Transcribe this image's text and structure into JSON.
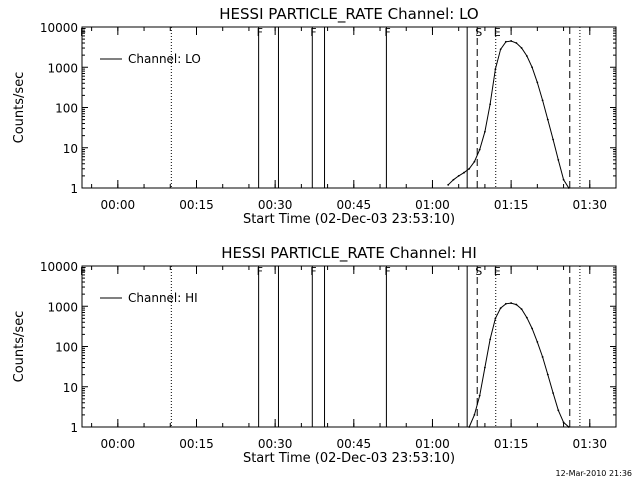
{
  "timestamp": "12-Mar-2010 21:36",
  "chart_data": [
    {
      "type": "line",
      "title": "HESSI PARTICLE_RATE Channel: LO",
      "xlabel": "Start Time (02-Dec-03 23:53:10)",
      "ylabel": "Counts/sec",
      "yscale": "log",
      "ylim": [
        1,
        10000
      ],
      "xlim": [
        "23:53:10",
        "01:35:00"
      ],
      "ytick_labels": [
        "1",
        "10",
        "100",
        "1000",
        "10000"
      ],
      "xtick_labels": [
        "00:00",
        "00:15",
        "00:30",
        "00:45",
        "01:00",
        "01:15",
        "01:30"
      ],
      "legend": {
        "position": "top-left",
        "entries": [
          "Channel: LO"
        ]
      },
      "series": [
        {
          "name": "Channel: LO",
          "x": [
            "01:03",
            "01:04",
            "01:05",
            "01:06",
            "01:07",
            "01:08",
            "01:09",
            "01:10",
            "01:11",
            "01:12",
            "01:13",
            "01:14",
            "01:15",
            "01:16",
            "01:17",
            "01:18",
            "01:19",
            "01:20",
            "01:21",
            "01:22",
            "01:23",
            "01:24",
            "01:25",
            "01:26"
          ],
          "y": [
            1.2,
            1.6,
            2.0,
            2.4,
            3.0,
            4.5,
            9,
            25,
            120,
            900,
            2800,
            4300,
            4500,
            4000,
            3000,
            1900,
            1000,
            420,
            150,
            50,
            16,
            5,
            1.6,
            1.0
          ]
        }
      ],
      "markers": [
        {
          "label": "F",
          "time": "23:53:10",
          "style": "solid"
        },
        {
          "label": "",
          "time": "00:10:12",
          "style": "dotted"
        },
        {
          "label": "F",
          "time": "00:26:51",
          "style": "solid"
        },
        {
          "label": "",
          "time": "00:30:38",
          "style": "solid"
        },
        {
          "label": "F",
          "time": "00:37:05",
          "style": "solid"
        },
        {
          "label": "",
          "time": "00:39:25",
          "style": "solid"
        },
        {
          "label": "F",
          "time": "00:51:13",
          "style": "solid"
        },
        {
          "label": "",
          "time": "01:06:37",
          "style": "solid"
        },
        {
          "label": "S",
          "time": "01:08:32",
          "style": "dashed"
        },
        {
          "label": "E",
          "time": "01:12:04",
          "style": "dotted"
        },
        {
          "label": "",
          "time": "01:26:11",
          "style": "dashed"
        },
        {
          "label": "",
          "time": "01:28:07",
          "style": "dotted"
        }
      ]
    },
    {
      "type": "line",
      "title": "HESSI PARTICLE_RATE Channel: HI",
      "xlabel": "Start Time (02-Dec-03 23:53:10)",
      "ylabel": "Counts/sec",
      "yscale": "log",
      "ylim": [
        1,
        10000
      ],
      "xlim": [
        "23:53:10",
        "01:35:00"
      ],
      "ytick_labels": [
        "1",
        "10",
        "100",
        "1000",
        "10000"
      ],
      "xtick_labels": [
        "00:00",
        "00:15",
        "00:30",
        "00:45",
        "01:00",
        "01:15",
        "01:30"
      ],
      "legend": {
        "position": "top-left",
        "entries": [
          "Channel: HI"
        ]
      },
      "series": [
        {
          "name": "Channel: HI",
          "x": [
            "01:07",
            "01:08",
            "01:09",
            "01:10",
            "01:11",
            "01:12",
            "01:13",
            "01:14",
            "01:15",
            "01:16",
            "01:17",
            "01:18",
            "01:19",
            "01:20",
            "01:21",
            "01:22",
            "01:23",
            "01:24",
            "01:25",
            "01:26"
          ],
          "y": [
            1.0,
            2.0,
            6,
            30,
            150,
            500,
            900,
            1150,
            1200,
            1100,
            850,
            520,
            280,
            130,
            55,
            20,
            7,
            2.6,
            1.3,
            1.0
          ]
        }
      ],
      "markers": [
        {
          "label": "F",
          "time": "23:53:10",
          "style": "solid"
        },
        {
          "label": "",
          "time": "00:10:12",
          "style": "dotted"
        },
        {
          "label": "F",
          "time": "00:26:51",
          "style": "solid"
        },
        {
          "label": "",
          "time": "00:30:38",
          "style": "solid"
        },
        {
          "label": "F",
          "time": "00:37:05",
          "style": "solid"
        },
        {
          "label": "",
          "time": "00:39:25",
          "style": "solid"
        },
        {
          "label": "F",
          "time": "00:51:13",
          "style": "solid"
        },
        {
          "label": "",
          "time": "01:06:37",
          "style": "solid"
        },
        {
          "label": "S",
          "time": "01:08:32",
          "style": "dashed"
        },
        {
          "label": "E",
          "time": "01:12:04",
          "style": "dotted"
        },
        {
          "label": "",
          "time": "01:26:11",
          "style": "dashed"
        },
        {
          "label": "",
          "time": "01:28:07",
          "style": "dotted"
        }
      ]
    }
  ]
}
